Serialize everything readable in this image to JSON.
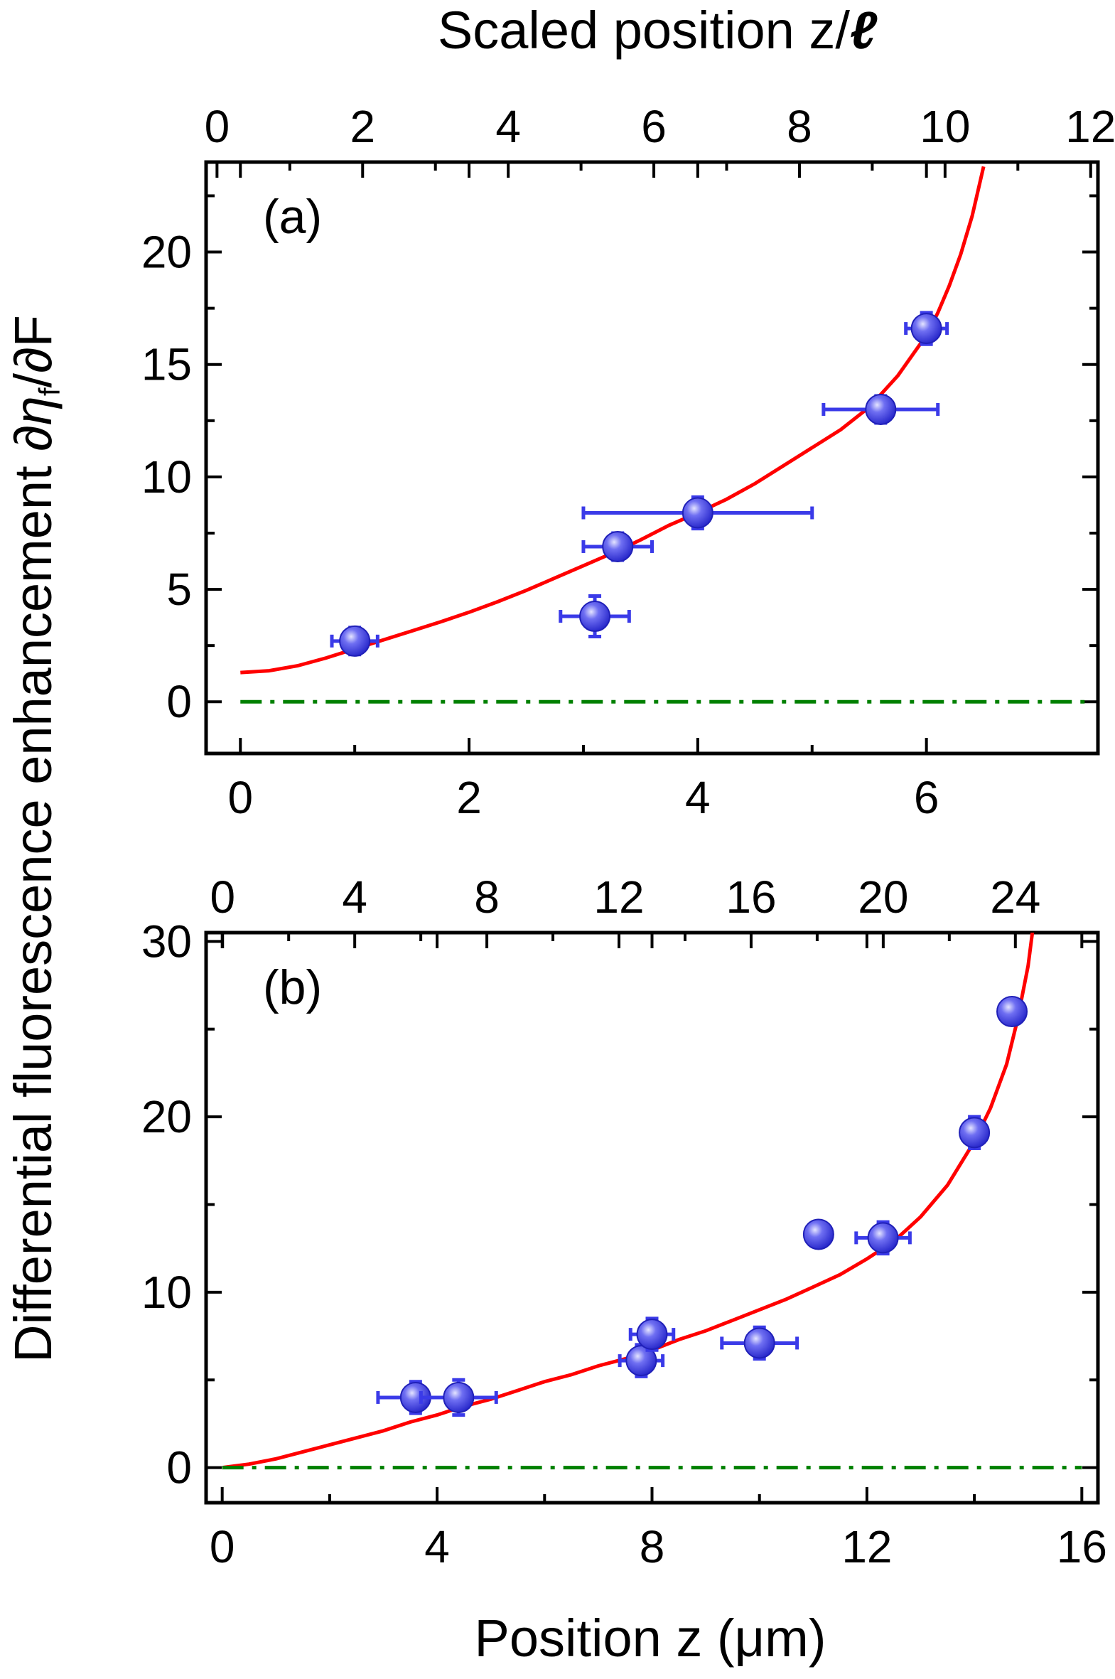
{
  "figure": {
    "ylabel_main": "Differential fluorescence enhancement ",
    "ylabel_symbol": "∂η",
    "ylabel_sub": "f",
    "ylabel_tail": "/∂F",
    "top_axis_title_main": "Scaled position z/",
    "top_axis_title_ell": "ℓ",
    "bottom_axis_title": "Position z (μm)"
  },
  "colors": {
    "fit": "#ff0000",
    "data": "#3a3ae8",
    "data_highlight": "#c8c8ff",
    "baseline": "#008000",
    "axis": "#000000"
  },
  "chart_data": [
    {
      "type": "scatter",
      "panel": "(a)",
      "xlabel": "",
      "ylabel": "Differential fluorescence enhancement ∂η_f/∂F",
      "top_xlabel": "Scaled position z/ℓ",
      "xlim": [
        -0.3,
        7.5
      ],
      "ylim": [
        -2.3,
        24
      ],
      "x_ticks": [
        0,
        2,
        4,
        6
      ],
      "y_ticks": [
        0,
        5,
        10,
        15,
        20
      ],
      "top_xlim": [
        -0.15,
        12.1
      ],
      "top_ticks": [
        0,
        2,
        4,
        6,
        8,
        10,
        12
      ],
      "series": [
        {
          "name": "data",
          "x": [
            1.0,
            3.1,
            3.3,
            4.0,
            5.6,
            6.0
          ],
          "y": [
            2.7,
            3.8,
            6.9,
            8.4,
            13.0,
            16.6
          ],
          "xerr": [
            0.2,
            0.3,
            0.3,
            1.0,
            0.5,
            0.18
          ],
          "yerr": [
            0.6,
            0.9,
            0.6,
            0.7,
            0.6,
            0.7
          ]
        },
        {
          "name": "fit",
          "x": [
            0.0,
            0.25,
            0.5,
            0.75,
            1.0,
            1.25,
            1.5,
            1.75,
            2.0,
            2.25,
            2.5,
            2.75,
            3.0,
            3.25,
            3.5,
            3.75,
            4.0,
            4.25,
            4.5,
            4.75,
            5.0,
            5.25,
            5.5,
            5.75,
            6.0,
            6.1,
            6.2,
            6.3,
            6.4,
            6.5
          ],
          "y": [
            1.3,
            1.38,
            1.6,
            1.95,
            2.35,
            2.75,
            3.15,
            3.55,
            3.98,
            4.45,
            4.95,
            5.5,
            6.05,
            6.6,
            7.2,
            7.85,
            8.4,
            9.0,
            9.7,
            10.5,
            11.3,
            12.1,
            13.1,
            14.5,
            16.3,
            17.3,
            18.5,
            19.9,
            21.6,
            23.8
          ]
        },
        {
          "name": "baseline",
          "x": [
            0.0,
            7.4
          ],
          "y": [
            0,
            0
          ]
        }
      ]
    },
    {
      "type": "scatter",
      "panel": "(b)",
      "xlabel": "Position z (μm)",
      "ylabel": "Differential fluorescence enhancement ∂η_f/∂F",
      "xlim": [
        -0.3,
        16.3
      ],
      "ylim": [
        -2,
        30.5
      ],
      "x_ticks": [
        0,
        4,
        8,
        12,
        16
      ],
      "y_ticks": [
        0,
        10,
        20,
        30
      ],
      "top_xlim": [
        -0.5,
        26.5
      ],
      "top_ticks": [
        0,
        4,
        8,
        12,
        16,
        20,
        24
      ],
      "series": [
        {
          "name": "data",
          "x": [
            3.6,
            4.4,
            7.8,
            8.0,
            10.0,
            11.1,
            12.3,
            14.0,
            14.7
          ],
          "y": [
            4.0,
            4.0,
            6.1,
            7.6,
            7.1,
            13.3,
            13.1,
            19.1,
            26.0
          ],
          "xerr": [
            0.7,
            0.7,
            0.4,
            0.4,
            0.7,
            0.2,
            0.5,
            0.2,
            0.2
          ],
          "yerr": [
            0.9,
            1.0,
            0.9,
            0.9,
            0.9,
            0.7,
            0.9,
            0.9,
            0.7
          ]
        },
        {
          "name": "fit",
          "x": [
            0.0,
            0.5,
            1.0,
            1.5,
            2.0,
            2.5,
            3.0,
            3.5,
            4.0,
            4.5,
            5.0,
            5.5,
            6.0,
            6.5,
            7.0,
            7.5,
            8.0,
            8.5,
            9.0,
            9.5,
            10.0,
            10.5,
            11.0,
            11.5,
            12.0,
            12.5,
            13.0,
            13.5,
            14.0,
            14.3,
            14.6,
            14.8,
            15.0,
            15.1
          ],
          "y": [
            0.0,
            0.2,
            0.5,
            0.9,
            1.3,
            1.7,
            2.1,
            2.6,
            3.0,
            3.5,
            3.9,
            4.4,
            4.9,
            5.3,
            5.8,
            6.2,
            6.7,
            7.3,
            7.8,
            8.4,
            9.0,
            9.6,
            10.3,
            11.0,
            11.9,
            12.9,
            14.3,
            16.1,
            18.6,
            20.5,
            23.0,
            25.5,
            28.6,
            31.0
          ]
        },
        {
          "name": "baseline",
          "x": [
            0.0,
            16.0
          ],
          "y": [
            0,
            0
          ]
        }
      ]
    }
  ]
}
